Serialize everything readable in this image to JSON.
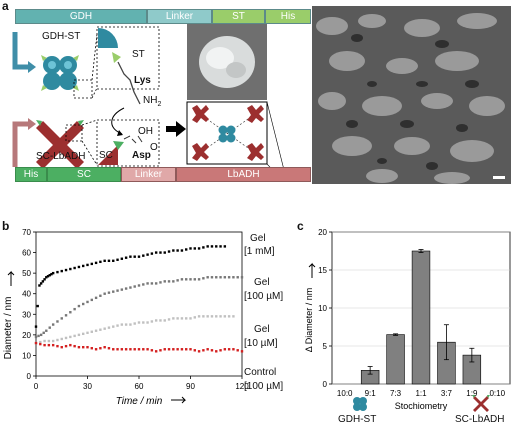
{
  "panel_a": {
    "letter": "a",
    "top_bar": [
      "GDH",
      "Linker",
      "ST",
      "His"
    ],
    "bottom_bar": [
      "His",
      "SC",
      "Linker",
      "LbADH"
    ],
    "gdh_st_label": "GDH-ST",
    "sc_lbadh_label": "SC-LbADH",
    "st_label": "ST",
    "lys_label": "Lys",
    "nh2_label": "NH",
    "nh2_sub": "2",
    "oh_label": "OH",
    "o_label": "O",
    "sc_label": "SC",
    "asp_label": "Asp",
    "colors": {
      "teal_bar": "#4aa6a3",
      "light_teal": "#b9dede",
      "green": "#9acd6a",
      "red_bar": "#c97878",
      "light_red": "#e8b0b0",
      "green_bar": "#4caf62"
    }
  },
  "panel_b": {
    "letter": "b",
    "ylabel": "Diameter / nm",
    "xlabel": "Time / min",
    "annotations": [
      {
        "line1": "Gel",
        "line2": "[1 mM]"
      },
      {
        "line1": "Gel",
        "line2": "[100 µM]"
      },
      {
        "line1": "Gel",
        "line2": "[10 µM]"
      },
      {
        "line1": "Control",
        "line2": "[100 µM]"
      }
    ]
  },
  "panel_c": {
    "letter": "c",
    "ylabel": "Δ Diameter / nm",
    "xlabel": "Stochiometry",
    "left_label": "GDH-ST",
    "right_label": "SC-LbADH"
  },
  "chart_data": [
    {
      "type": "scatter",
      "xlabel": "Time / min",
      "ylabel": "Diameter / nm",
      "xlim": [
        0,
        120
      ],
      "ylim": [
        0,
        70
      ],
      "x_ticks": [
        0,
        30,
        60,
        90,
        120
      ],
      "y_ticks": [
        0,
        10,
        20,
        30,
        40,
        50,
        60,
        70
      ],
      "series": [
        {
          "name": "Gel [1 mM]",
          "color": "#000000",
          "x": [
            0,
            2,
            4,
            6,
            8,
            10,
            15,
            20,
            25,
            30,
            35,
            40,
            45,
            50,
            55,
            60,
            65,
            70,
            75,
            80,
            85,
            90,
            95,
            100,
            105,
            110
          ],
          "y": [
            24,
            44,
            46,
            48,
            49,
            50,
            51,
            52,
            53,
            54,
            55,
            56,
            56,
            57,
            58,
            58,
            59,
            60,
            60,
            61,
            61,
            62,
            62,
            63,
            63,
            63
          ]
        },
        {
          "name": "Gel [100 µM]",
          "color": "#777777",
          "x": [
            0,
            3,
            6,
            10,
            15,
            20,
            25,
            30,
            35,
            40,
            45,
            50,
            55,
            60,
            65,
            70,
            75,
            80,
            85,
            90,
            95,
            100,
            105,
            110,
            115,
            120
          ],
          "y": [
            19,
            20,
            22,
            25,
            28,
            31,
            34,
            36,
            38,
            40,
            41,
            42,
            43,
            44,
            45,
            45,
            46,
            46,
            47,
            47,
            47,
            48,
            48,
            48,
            48,
            48
          ]
        },
        {
          "name": "Gel [10 µM]",
          "color": "#c0c0c0",
          "x": [
            0,
            5,
            10,
            15,
            20,
            25,
            30,
            35,
            40,
            45,
            50,
            55,
            60,
            65,
            70,
            75,
            80,
            85,
            90,
            95,
            100,
            105,
            110,
            115
          ],
          "y": [
            16,
            17,
            17,
            18,
            19,
            20,
            21,
            22,
            23,
            24,
            25,
            25,
            26,
            26,
            27,
            27,
            28,
            28,
            28,
            29,
            29,
            29,
            29,
            29
          ]
        },
        {
          "name": "Control [100 µM]",
          "color": "#d42020",
          "x": [
            0,
            5,
            10,
            15,
            20,
            25,
            30,
            35,
            40,
            45,
            50,
            55,
            60,
            65,
            70,
            75,
            80,
            85,
            90,
            95,
            100,
            105,
            110,
            115,
            120
          ],
          "y": [
            16,
            15,
            15,
            14,
            15,
            14,
            14,
            13,
            14,
            13,
            13,
            13,
            13,
            13,
            12,
            13,
            13,
            13,
            13,
            12,
            13,
            12,
            13,
            13,
            12
          ]
        }
      ]
    },
    {
      "type": "bar",
      "xlabel": "Stochiometry",
      "ylabel": "Δ Diameter / nm",
      "ylim": [
        0,
        20
      ],
      "y_ticks": [
        0,
        5,
        10,
        15,
        20
      ],
      "categories": [
        "10:0",
        "9:1",
        "7:3",
        "1:1",
        "3:7",
        "1:9",
        "0:10"
      ],
      "values": [
        0,
        1.8,
        6.5,
        17.5,
        5.5,
        3.8,
        0
      ],
      "errors": [
        0,
        0.5,
        0.1,
        0.2,
        2.3,
        0.9,
        0
      ],
      "bar_color": "#808080"
    }
  ]
}
